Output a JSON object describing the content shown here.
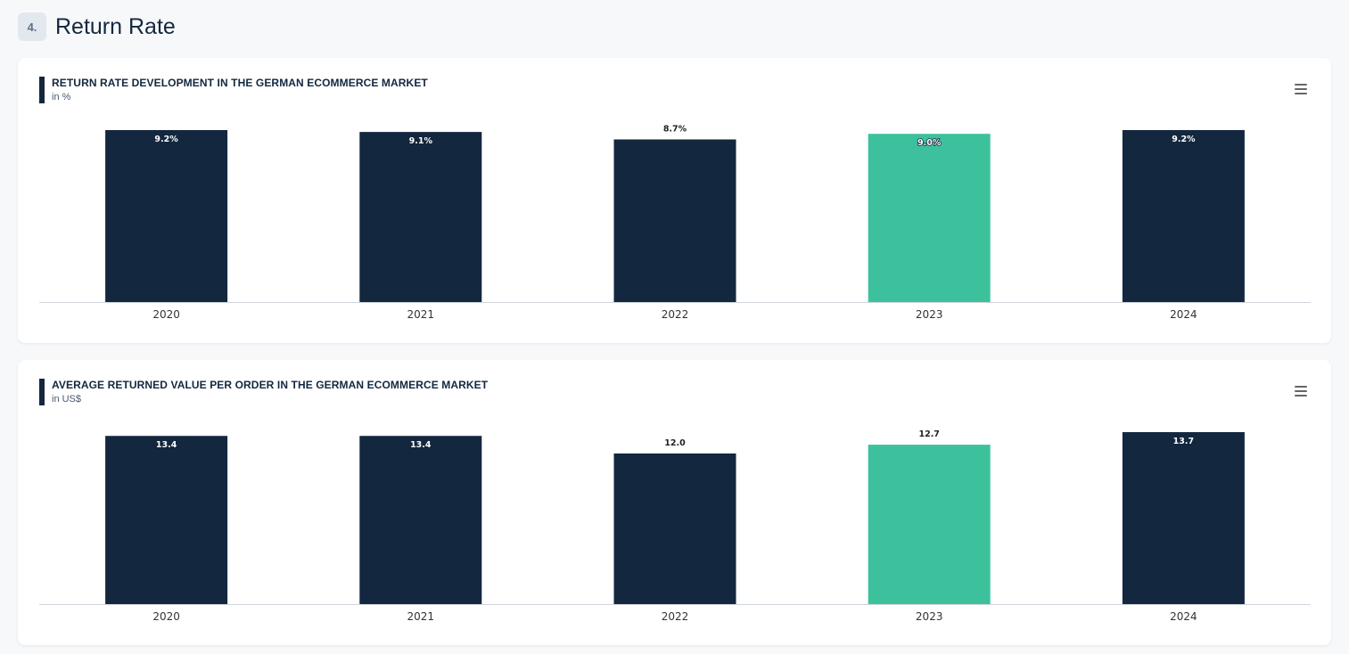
{
  "section": {
    "number": "4.",
    "title": "Return Rate"
  },
  "colors": {
    "primary": "#13273f",
    "highlight": "#3dc19c"
  },
  "menu_icon": "hamburger-menu-icon",
  "chart_data": [
    {
      "type": "bar",
      "title": "RETURN RATE DEVELOPMENT IN THE GERMAN ECOMMERCE MARKET",
      "subtitle": "in %",
      "categories": [
        "2020",
        "2021",
        "2022",
        "2023",
        "2024"
      ],
      "values": [
        9.2,
        9.1,
        8.7,
        9.0,
        9.2
      ],
      "labels": [
        "9.2%",
        "9.1%",
        "8.7%",
        "9.0%",
        "9.2%"
      ],
      "highlight_index": 3,
      "ylim": [
        0,
        9.2
      ],
      "grid": false,
      "legend": "none"
    },
    {
      "type": "bar",
      "title": "AVERAGE RETURNED VALUE PER ORDER IN THE GERMAN ECOMMERCE MARKET",
      "subtitle": "in US$",
      "categories": [
        "2020",
        "2021",
        "2022",
        "2023",
        "2024"
      ],
      "values": [
        13.4,
        13.4,
        12.0,
        12.7,
        13.7
      ],
      "labels": [
        "13.4",
        "13.4",
        "12.0",
        "12.7",
        "13.7"
      ],
      "highlight_index": 3,
      "ylim": [
        0,
        13.7
      ],
      "grid": false,
      "legend": "none"
    }
  ]
}
